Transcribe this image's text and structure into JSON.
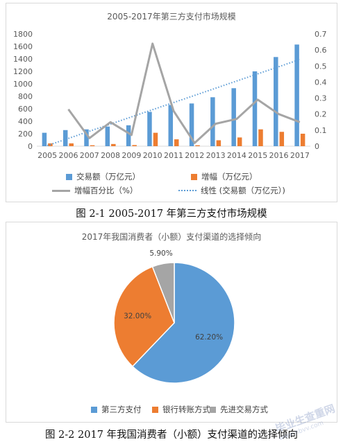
{
  "figure1": {
    "caption": "图 2-1 2005-2017 年第三方支付市场规模",
    "chart_data": {
      "type": "bar",
      "title": "2005-2017年第三方支付市场规模",
      "categories": [
        "2005",
        "2006",
        "2007",
        "2008",
        "2009",
        "2010",
        "2011",
        "2012",
        "2013",
        "2014",
        "2015",
        "2016",
        "2017"
      ],
      "ylim": [
        0,
        1800
      ],
      "y_ticks": [
        "0",
        "200",
        "400",
        "600",
        "800",
        "1000",
        "1200",
        "1400",
        "1600",
        "1800"
      ],
      "y2lim": [
        0,
        0.7
      ],
      "y2_ticks": [
        "0",
        "0.1",
        "0.2",
        "0.3",
        "0.4",
        "0.5",
        "0.6",
        "0.7"
      ],
      "series": [
        {
          "name": "交易额（万亿元）",
          "type": "bar",
          "axis": "left",
          "color": "#5b9bd5",
          "values": [
            215,
            258,
            270,
            315,
            335,
            550,
            660,
            685,
            785,
            930,
            1200,
            1430,
            1630
          ]
        },
        {
          "name": "增幅（万亿元）",
          "type": "bar",
          "axis": "left",
          "color": "#ed7d31",
          "values": [
            45,
            45,
            15,
            35,
            18,
            215,
            110,
            15,
            95,
            140,
            270,
            230,
            200
          ]
        },
        {
          "name": "增幅百分比（%）",
          "type": "line",
          "axis": "right",
          "color": "#a5a5a5",
          "values": [
            null,
            0.23,
            0.05,
            0.15,
            0.07,
            0.64,
            0.22,
            0.02,
            0.14,
            0.17,
            0.29,
            0.2,
            0.15
          ]
        },
        {
          "name": "线性 (交易额（万亿元）)",
          "type": "trendline",
          "axis": "left",
          "color": "#5b9bd5",
          "values": [
            10,
            125,
            240,
            355,
            470,
            585,
            700,
            815,
            930,
            1045,
            1160,
            1275,
            1390
          ]
        }
      ],
      "grid": false,
      "legend": "bottom"
    }
  },
  "figure2": {
    "caption": "图 2-2 2017 年我国消费者（小额）支付渠道的选择倾向",
    "chart_data": {
      "type": "pie",
      "title": "2017年我国消费者（小额）支付渠道的选择倾向",
      "labels": [
        "第三方支付",
        "银行转账方式",
        "先进交易方式"
      ],
      "values": [
        62.2,
        32.0,
        5.9
      ],
      "value_labels": [
        "62.20%",
        "32.00%",
        "5.90%"
      ],
      "colors": [
        "#5b9bd5",
        "#ed7d31",
        "#a5a5a5"
      ],
      "legend": "bottom"
    }
  },
  "watermark": {
    "text": "毕业生查重网",
    "sub": "www.nbvv.com"
  }
}
